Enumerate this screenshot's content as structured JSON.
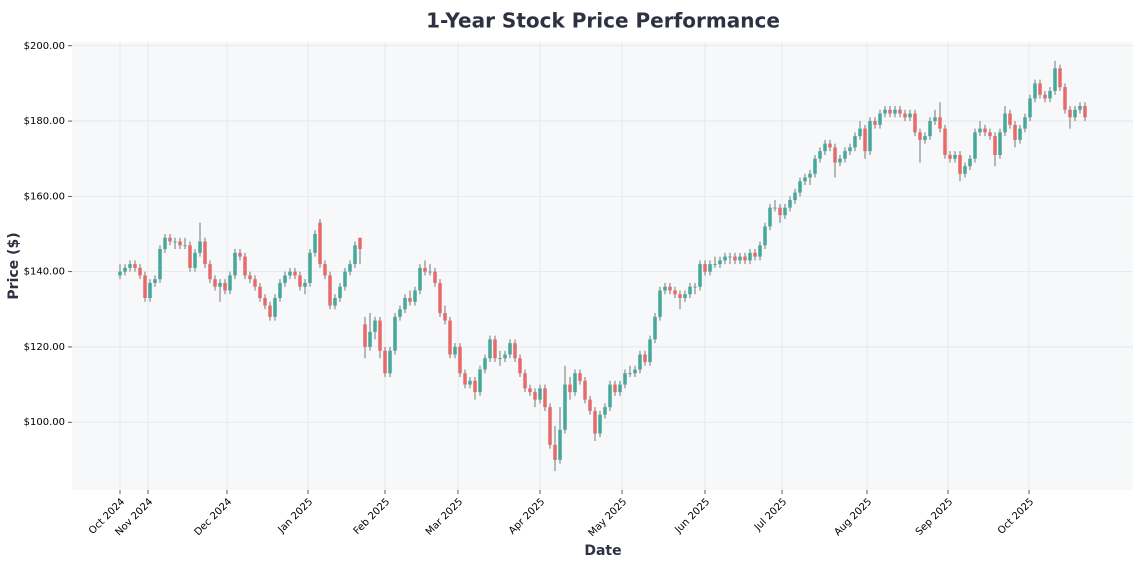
{
  "chart_data": {
    "type": "candlestick",
    "title": "1-Year Stock Price Performance",
    "xlabel": "Date",
    "ylabel": "Price ($)",
    "up_color": "#45a89a",
    "down_color": "#e66a6a",
    "grid": true,
    "ylim": [
      82,
      201
    ],
    "yticks": [
      {
        "value": 100,
        "label": "$100.00"
      },
      {
        "value": 120,
        "label": "$120.00"
      },
      {
        "value": 140,
        "label": "$140.00"
      },
      {
        "value": 160,
        "label": "$160.00"
      },
      {
        "value": 180,
        "label": "$180.00"
      },
      {
        "value": 200,
        "label": "$200.00"
      }
    ],
    "xlim": [
      -9.6,
      202.6
    ],
    "xticks": [
      {
        "value": 0,
        "label": "Oct 2024"
      },
      {
        "value": 5.6,
        "label": "Nov 2024"
      },
      {
        "value": 21.4,
        "label": "Dec 2024"
      },
      {
        "value": 37.6,
        "label": "Jan 2025"
      },
      {
        "value": 53,
        "label": "Feb 2025"
      },
      {
        "value": 67.6,
        "label": "Mar 2025"
      },
      {
        "value": 84,
        "label": "Apr 2025"
      },
      {
        "value": 100.4,
        "label": "May 2025"
      },
      {
        "value": 117,
        "label": "Jun 2025"
      },
      {
        "value": 132.4,
        "label": "Jul 2025"
      },
      {
        "value": 149.4,
        "label": "Aug 2025"
      },
      {
        "value": 165.6,
        "label": "Sep 2025"
      },
      {
        "value": 181.8,
        "label": "Oct 2025"
      }
    ],
    "ohlc": [
      [
        139,
        142,
        138,
        140
      ],
      [
        140,
        142,
        139,
        141
      ],
      [
        141,
        143,
        140,
        142
      ],
      [
        142,
        143,
        140,
        141
      ],
      [
        141,
        142,
        138,
        139
      ],
      [
        139,
        140,
        132,
        133
      ],
      [
        133,
        138,
        132,
        137
      ],
      [
        137,
        139,
        136,
        138
      ],
      [
        138,
        147,
        137,
        146
      ],
      [
        146,
        150,
        145,
        149
      ],
      [
        149,
        150,
        147,
        148
      ],
      [
        148,
        149,
        146,
        148
      ],
      [
        148,
        149,
        146,
        147
      ],
      [
        147,
        149,
        146,
        147
      ],
      [
        147,
        148,
        140,
        141
      ],
      [
        141,
        146,
        140,
        145
      ],
      [
        145,
        153,
        144,
        148
      ],
      [
        148,
        149,
        141,
        142
      ],
      [
        142,
        143,
        137,
        138
      ],
      [
        138,
        139,
        135,
        136
      ],
      [
        136,
        138,
        132,
        137
      ],
      [
        137,
        138,
        134,
        135
      ],
      [
        135,
        140,
        134,
        139
      ],
      [
        139,
        146,
        138,
        145
      ],
      [
        145,
        146,
        143,
        144
      ],
      [
        144,
        145,
        138,
        139
      ],
      [
        139,
        140,
        137,
        138
      ],
      [
        138,
        139,
        135,
        136
      ],
      [
        136,
        137,
        132,
        133
      ],
      [
        133,
        134,
        130,
        131
      ],
      [
        131,
        132,
        127,
        128
      ],
      [
        128,
        134,
        127,
        133
      ],
      [
        133,
        138,
        132,
        137
      ],
      [
        137,
        140,
        136,
        139
      ],
      [
        139,
        141,
        138,
        140
      ],
      [
        140,
        141,
        138,
        139
      ],
      [
        139,
        140,
        135,
        136
      ],
      [
        136,
        138,
        134,
        137
      ],
      [
        137,
        146,
        136,
        145
      ],
      [
        145,
        151,
        144,
        150
      ],
      [
        153,
        154,
        141,
        142
      ],
      [
        142,
        143,
        138,
        139
      ],
      [
        139,
        140,
        130,
        131
      ],
      [
        131,
        134,
        130,
        133
      ],
      [
        133,
        137,
        132,
        136
      ],
      [
        136,
        141,
        135,
        140
      ],
      [
        140,
        143,
        139,
        142
      ],
      [
        142,
        148,
        141,
        147
      ],
      [
        149,
        149,
        142,
        146
      ],
      [
        126,
        128,
        117,
        120
      ],
      [
        120,
        129,
        119,
        124
      ],
      [
        124,
        128,
        122,
        127
      ],
      [
        127,
        128,
        117,
        119
      ],
      [
        119,
        120,
        112,
        113
      ],
      [
        113,
        120,
        112,
        119
      ],
      [
        119,
        129,
        118,
        128
      ],
      [
        128,
        131,
        127,
        130
      ],
      [
        130,
        134,
        129,
        133
      ],
      [
        133,
        135,
        131,
        132
      ],
      [
        132,
        136,
        131,
        135
      ],
      [
        135,
        142,
        134,
        141
      ],
      [
        141,
        143,
        139,
        140
      ],
      [
        140,
        142,
        139,
        140
      ],
      [
        140,
        141,
        136,
        137
      ],
      [
        137,
        138,
        128,
        129
      ],
      [
        129,
        131,
        126,
        127
      ],
      [
        127,
        128,
        117,
        118
      ],
      [
        118,
        121,
        117,
        120
      ],
      [
        120,
        121,
        112,
        113
      ],
      [
        113,
        114,
        109,
        110
      ],
      [
        110,
        112,
        109,
        111
      ],
      [
        111,
        112,
        106,
        108
      ],
      [
        108,
        115,
        107,
        114
      ],
      [
        114,
        118,
        113,
        117
      ],
      [
        117,
        123,
        116,
        122
      ],
      [
        122,
        123,
        116,
        117
      ],
      [
        117,
        119,
        115,
        117
      ],
      [
        117,
        119,
        116,
        118
      ],
      [
        118,
        122,
        117,
        121
      ],
      [
        121,
        122,
        116,
        117
      ],
      [
        117,
        118,
        112,
        113
      ],
      [
        113,
        114,
        108,
        109
      ],
      [
        109,
        110,
        107,
        108
      ],
      [
        108,
        109,
        104,
        106
      ],
      [
        106,
        110,
        105,
        109
      ],
      [
        109,
        110,
        103,
        104
      ],
      [
        104,
        105,
        93,
        94
      ],
      [
        94,
        99,
        87,
        90
      ],
      [
        90,
        104,
        89,
        98
      ],
      [
        98,
        115,
        97,
        110
      ],
      [
        110,
        112,
        106,
        108
      ],
      [
        108,
        114,
        107,
        113
      ],
      [
        113,
        114,
        110,
        111
      ],
      [
        111,
        112,
        105,
        106
      ],
      [
        106,
        107,
        102,
        103
      ],
      [
        103,
        104,
        95,
        97
      ],
      [
        97,
        103,
        96,
        102
      ],
      [
        102,
        105,
        101,
        104
      ],
      [
        104,
        111,
        103,
        110
      ],
      [
        110,
        111,
        107,
        108
      ],
      [
        108,
        111,
        107,
        110
      ],
      [
        110,
        114,
        109,
        113
      ],
      [
        113,
        115,
        112,
        113
      ],
      [
        113,
        115,
        112,
        114
      ],
      [
        114,
        119,
        113,
        118
      ],
      [
        118,
        119,
        115,
        116
      ],
      [
        116,
        123,
        115,
        122
      ],
      [
        122,
        129,
        121,
        128
      ],
      [
        128,
        136,
        127,
        135
      ],
      [
        135,
        137,
        134,
        136
      ],
      [
        136,
        137,
        134,
        135
      ],
      [
        135,
        136,
        133,
        134
      ],
      [
        134,
        135,
        130,
        133
      ],
      [
        133,
        135,
        132,
        134
      ],
      [
        134,
        137,
        133,
        136
      ],
      [
        136,
        137,
        134,
        136
      ],
      [
        136,
        143,
        135,
        142
      ],
      [
        142,
        143,
        139,
        140
      ],
      [
        140,
        143,
        139,
        142
      ],
      [
        142,
        144,
        141,
        142
      ],
      [
        142,
        144,
        141,
        143
      ],
      [
        143,
        145,
        142,
        144
      ],
      [
        144,
        145,
        142,
        144
      ],
      [
        144,
        145,
        142,
        143
      ],
      [
        143,
        145,
        142,
        144
      ],
      [
        144,
        145,
        142,
        143
      ],
      [
        143,
        146,
        142,
        145
      ],
      [
        145,
        146,
        143,
        144
      ],
      [
        144,
        148,
        143,
        147
      ],
      [
        147,
        153,
        146,
        152
      ],
      [
        152,
        158,
        151,
        157
      ],
      [
        157,
        159,
        156,
        157
      ],
      [
        157,
        158,
        153,
        155
      ],
      [
        155,
        158,
        154,
        157
      ],
      [
        157,
        160,
        156,
        159
      ],
      [
        159,
        162,
        158,
        161
      ],
      [
        161,
        165,
        160,
        164
      ],
      [
        164,
        166,
        163,
        165
      ],
      [
        165,
        167,
        163,
        166
      ],
      [
        166,
        171,
        165,
        170
      ],
      [
        170,
        173,
        169,
        172
      ],
      [
        172,
        175,
        171,
        174
      ],
      [
        174,
        175,
        172,
        173
      ],
      [
        173,
        174,
        165,
        169
      ],
      [
        169,
        171,
        168,
        170
      ],
      [
        170,
        173,
        169,
        172
      ],
      [
        172,
        174,
        171,
        173
      ],
      [
        173,
        177,
        172,
        176
      ],
      [
        176,
        180,
        175,
        178
      ],
      [
        178,
        179,
        170,
        172
      ],
      [
        172,
        181,
        171,
        180
      ],
      [
        180,
        181,
        178,
        179
      ],
      [
        179,
        183,
        178,
        182
      ],
      [
        182,
        184,
        181,
        183
      ],
      [
        183,
        184,
        181,
        182
      ],
      [
        182,
        184,
        181,
        183
      ],
      [
        183,
        184,
        181,
        182
      ],
      [
        182,
        183,
        180,
        181
      ],
      [
        181,
        183,
        180,
        182
      ],
      [
        182,
        183,
        176,
        177
      ],
      [
        177,
        178,
        169,
        175
      ],
      [
        175,
        177,
        174,
        176
      ],
      [
        176,
        181,
        175,
        180
      ],
      [
        180,
        183,
        179,
        181
      ],
      [
        181,
        185,
        177,
        178
      ],
      [
        178,
        179,
        170,
        171
      ],
      [
        171,
        172,
        169,
        170
      ],
      [
        170,
        172,
        169,
        171
      ],
      [
        171,
        172,
        164,
        166
      ],
      [
        166,
        169,
        165,
        168
      ],
      [
        168,
        171,
        167,
        170
      ],
      [
        170,
        178,
        169,
        177
      ],
      [
        177,
        180,
        176,
        178
      ],
      [
        178,
        179,
        176,
        177
      ],
      [
        177,
        178,
        175,
        176
      ],
      [
        176,
        177,
        168,
        171
      ],
      [
        171,
        178,
        170,
        177
      ],
      [
        177,
        184,
        176,
        182
      ],
      [
        182,
        183,
        178,
        179
      ],
      [
        179,
        180,
        173,
        175
      ],
      [
        175,
        179,
        174,
        178
      ],
      [
        178,
        182,
        177,
        181
      ],
      [
        181,
        187,
        180,
        186
      ],
      [
        186,
        191,
        185,
        190
      ],
      [
        190,
        191,
        186,
        187
      ],
      [
        187,
        188,
        185,
        186
      ],
      [
        186,
        189,
        185,
        188
      ],
      [
        188,
        196,
        187,
        194
      ],
      [
        194,
        195,
        188,
        189
      ],
      [
        189,
        190,
        182,
        183
      ],
      [
        183,
        184,
        178,
        181
      ],
      [
        181,
        184,
        180,
        183
      ],
      [
        183,
        185,
        182,
        184
      ],
      [
        184,
        185,
        180,
        181
      ]
    ]
  }
}
